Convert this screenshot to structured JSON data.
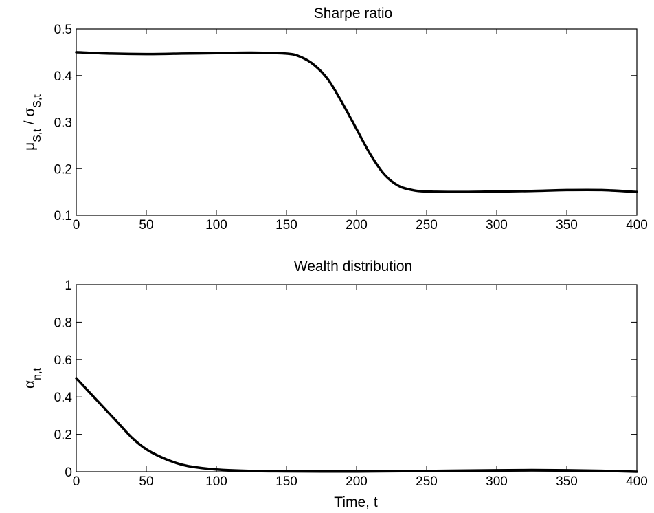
{
  "chart_data": [
    {
      "type": "line",
      "title": "Sharpe ratio",
      "ylabel": {
        "main": "μ",
        "sub1": "S,t",
        "sep": " / σ",
        "sub2": "S,t"
      },
      "xlabel": "",
      "xlim": [
        0,
        400
      ],
      "ylim": [
        0.1,
        0.5
      ],
      "xticks": [
        0,
        50,
        100,
        150,
        200,
        250,
        300,
        350,
        400
      ],
      "xtick_labels": [
        "0",
        "50",
        "100",
        "150",
        "200",
        "250",
        "300",
        "350",
        "400"
      ],
      "yticks": [
        0.1,
        0.2,
        0.3,
        0.4,
        0.5
      ],
      "ytick_labels": [
        "0.1",
        "0.2",
        "0.3",
        "0.4",
        "0.5"
      ],
      "grid": false,
      "series": [
        {
          "color": "#000000",
          "x": [
            0,
            25,
            50,
            75,
            100,
            125,
            150,
            160,
            170,
            180,
            190,
            200,
            210,
            220,
            230,
            240,
            250,
            275,
            300,
            325,
            350,
            375,
            400
          ],
          "y": [
            0.45,
            0.447,
            0.446,
            0.447,
            0.448,
            0.449,
            0.447,
            0.44,
            0.422,
            0.39,
            0.34,
            0.285,
            0.23,
            0.187,
            0.163,
            0.154,
            0.151,
            0.15,
            0.151,
            0.152,
            0.154,
            0.154,
            0.15
          ]
        }
      ]
    },
    {
      "type": "line",
      "title": "Wealth distribution",
      "ylabel": {
        "main": "α",
        "sub1": "n,t",
        "sep": "",
        "sub2": ""
      },
      "xlabel": "Time, t",
      "xlim": [
        0,
        400
      ],
      "ylim": [
        0,
        1
      ],
      "xticks": [
        0,
        50,
        100,
        150,
        200,
        250,
        300,
        350,
        400
      ],
      "xtick_labels": [
        "0",
        "50",
        "100",
        "150",
        "200",
        "250",
        "300",
        "350",
        "400"
      ],
      "yticks": [
        0,
        0.2,
        0.4,
        0.6,
        0.8,
        1
      ],
      "ytick_labels": [
        "0",
        "0.2",
        "0.4",
        "0.6",
        "0.8",
        "1"
      ],
      "grid": false,
      "series": [
        {
          "color": "#000000",
          "x": [
            0,
            10,
            20,
            30,
            40,
            50,
            60,
            70,
            80,
            100,
            125,
            150,
            175,
            200,
            250,
            300,
            325,
            350,
            375,
            400
          ],
          "y": [
            0.5,
            0.42,
            0.34,
            0.26,
            0.18,
            0.12,
            0.08,
            0.05,
            0.03,
            0.012,
            0.004,
            0.002,
            0.001,
            0.001,
            0.004,
            0.008,
            0.009,
            0.008,
            0.005,
            0.0
          ]
        }
      ]
    }
  ]
}
